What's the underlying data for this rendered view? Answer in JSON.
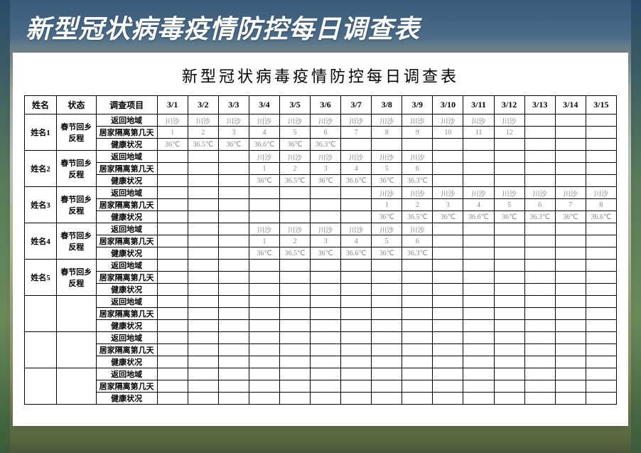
{
  "page": {
    "banner_title": "新型冠状病毒疫情防控每日调查表",
    "sheet_title": "新型冠状病毒疫情防控每日调查表",
    "background_gradient_top": "#3a5a7a",
    "background_gradient_bottom": "#4a5a3a",
    "sheet_bg": "#ffffff",
    "border_color": "#000000",
    "cell_value_color": "#888888",
    "banner_color": "#ffffff"
  },
  "columns": {
    "name": "姓名",
    "status": "状态",
    "item": "调查项目",
    "dates": [
      "3/1",
      "3/2",
      "3/3",
      "3/4",
      "3/5",
      "3/6",
      "3/7",
      "3/8",
      "3/9",
      "3/10",
      "3/11",
      "3/12",
      "3/13",
      "3/14",
      "3/15"
    ]
  },
  "item_labels": {
    "return_area": "返回地域",
    "isolation_days": "居家隔离第几天",
    "health": "健康状况"
  },
  "status_label_line1": "春节回乡",
  "status_label_line2": "反程",
  "location_value": "川沙",
  "people": [
    {
      "name": "姓名1",
      "rows": [
        [
          "川沙",
          "川沙",
          "川沙",
          "川沙",
          "川沙",
          "川沙",
          "川沙",
          "川沙",
          "川沙",
          "川沙",
          "川沙",
          "川沙",
          "",
          "",
          ""
        ],
        [
          "1",
          "2",
          "3",
          "4",
          "5",
          "6",
          "7",
          "8",
          "9",
          "10",
          "11",
          "12",
          "",
          "",
          ""
        ],
        [
          "36℃",
          "36.5℃",
          "36℃",
          "36.6℃",
          "36℃",
          "36.3℃",
          "",
          "",
          "",
          "",
          "",
          "",
          "",
          "",
          ""
        ]
      ]
    },
    {
      "name": "姓名2",
      "rows": [
        [
          "",
          "",
          "",
          "川沙",
          "川沙",
          "川沙",
          "川沙",
          "川沙",
          "川沙",
          "",
          "",
          "",
          "",
          "",
          ""
        ],
        [
          "",
          "",
          "",
          "1",
          "2",
          "3",
          "4",
          "5",
          "6",
          "",
          "",
          "",
          "",
          "",
          ""
        ],
        [
          "",
          "",
          "",
          "36℃",
          "36.5℃",
          "36℃",
          "36.6℃",
          "36℃",
          "36.3℃",
          "",
          "",
          "",
          "",
          "",
          ""
        ]
      ]
    },
    {
      "name": "姓名3",
      "rows": [
        [
          "",
          "",
          "",
          "",
          "",
          "",
          "",
          "川沙",
          "川沙",
          "川沙",
          "川沙",
          "川沙",
          "川沙",
          "川沙",
          "川沙"
        ],
        [
          "",
          "",
          "",
          "",
          "",
          "",
          "",
          "1",
          "2",
          "3",
          "4",
          "5",
          "6",
          "7",
          "8"
        ],
        [
          "",
          "",
          "",
          "",
          "",
          "",
          "",
          "36℃",
          "36.5℃",
          "36℃",
          "36.6℃",
          "36℃",
          "36.3℃",
          "36℃",
          "36.6℃"
        ]
      ]
    },
    {
      "name": "姓名4",
      "rows": [
        [
          "",
          "",
          "",
          "川沙",
          "川沙",
          "川沙",
          "川沙",
          "川沙",
          "川沙",
          "",
          "",
          "",
          "",
          "",
          ""
        ],
        [
          "",
          "",
          "",
          "1",
          "2",
          "3",
          "4",
          "5",
          "6",
          "",
          "",
          "",
          "",
          "",
          ""
        ],
        [
          "",
          "",
          "",
          "36℃",
          "36.5℃",
          "36℃",
          "36.6℃",
          "36℃",
          "36.3℃",
          "",
          "",
          "",
          "",
          "",
          ""
        ]
      ]
    },
    {
      "name": "姓名5",
      "rows": [
        [
          "",
          "",
          "",
          "",
          "",
          "",
          "",
          "",
          "",
          "",
          "",
          "",
          "",
          "",
          ""
        ],
        [
          "",
          "",
          "",
          "",
          "",
          "",
          "",
          "",
          "",
          "",
          "",
          "",
          "",
          "",
          ""
        ],
        [
          "",
          "",
          "",
          "",
          "",
          "",
          "",
          "",
          "",
          "",
          "",
          "",
          "",
          "",
          ""
        ]
      ]
    },
    {
      "name": "",
      "rows": [
        [
          "",
          "",
          "",
          "",
          "",
          "",
          "",
          "",
          "",
          "",
          "",
          "",
          "",
          "",
          ""
        ],
        [
          "",
          "",
          "",
          "",
          "",
          "",
          "",
          "",
          "",
          "",
          "",
          "",
          "",
          "",
          ""
        ],
        [
          "",
          "",
          "",
          "",
          "",
          "",
          "",
          "",
          "",
          "",
          "",
          "",
          "",
          "",
          ""
        ]
      ]
    },
    {
      "name": "",
      "rows": [
        [
          "",
          "",
          "",
          "",
          "",
          "",
          "",
          "",
          "",
          "",
          "",
          "",
          "",
          "",
          ""
        ],
        [
          "",
          "",
          "",
          "",
          "",
          "",
          "",
          "",
          "",
          "",
          "",
          "",
          "",
          "",
          ""
        ],
        [
          "",
          "",
          "",
          "",
          "",
          "",
          "",
          "",
          "",
          "",
          "",
          "",
          "",
          "",
          ""
        ]
      ]
    },
    {
      "name": "",
      "rows": [
        [
          "",
          "",
          "",
          "",
          "",
          "",
          "",
          "",
          "",
          "",
          "",
          "",
          "",
          "",
          ""
        ],
        [
          "",
          "",
          "",
          "",
          "",
          "",
          "",
          "",
          "",
          "",
          "",
          "",
          "",
          "",
          ""
        ],
        [
          "",
          "",
          "",
          "",
          "",
          "",
          "",
          "",
          "",
          "",
          "",
          "",
          "",
          "",
          ""
        ]
      ]
    }
  ]
}
